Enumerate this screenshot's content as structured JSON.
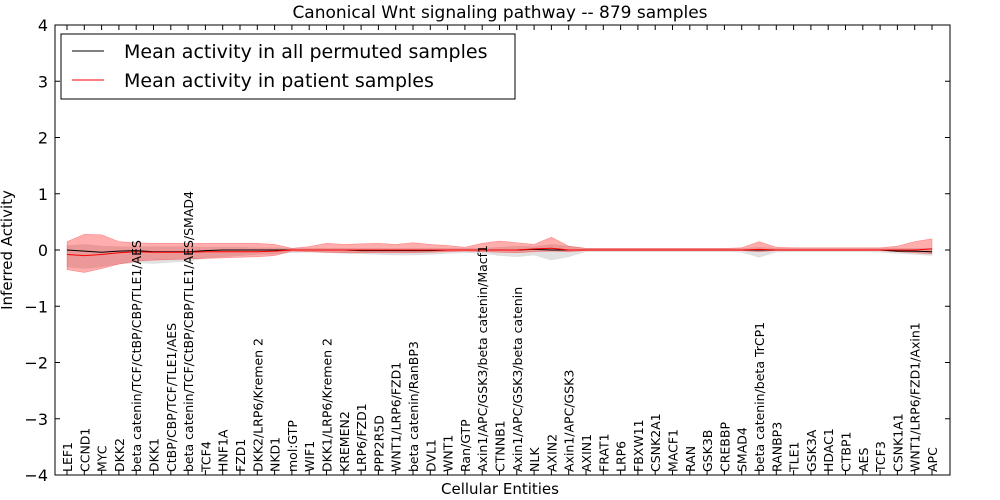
{
  "chart_data": {
    "type": "line",
    "title": "Canonical Wnt signaling pathway -- 879 samples",
    "xlabel": "Cellular Entities",
    "ylabel": "Inferred Activity",
    "ylim": [
      -4,
      4
    ],
    "yticks": [
      -4,
      -3,
      -2,
      -1,
      0,
      1,
      2,
      3,
      4
    ],
    "grid": false,
    "legend_position": "top-left",
    "categories": [
      "LEF1",
      "CCND1",
      "MYC",
      "DKK2",
      "beta catenin/TCF/CtBP/CBP/TLE1/AES",
      "DKK1",
      "CtBP/CBP/TCF/TLE1/AES",
      "beta catenin/TCF/CtBP/CBP/TLE1/AES/SMAD4",
      "TCF4",
      "HNF1A",
      "FZD1",
      "DKK2/LRP6/Kremen 2",
      "NKD1",
      "mol:GTP",
      "WIF1",
      "DKK1/LRP6/Kremen 2",
      "KREMEN2",
      "LRP6/FZD1",
      "PPP2R5D",
      "WNT1/LRP6/FZD1",
      "beta catenin/RanBP3",
      "DVL1",
      "WNT1",
      "Ran/GTP",
      "Axin1/APC/GSK3/beta catenin/Macf1",
      "CTNNB1",
      "Axin1/APC/GSK3/beta catenin",
      "NLK",
      "AXIN2",
      "Axin1/APC/GSK3",
      "AXIN1",
      "FRAT1",
      "LRP6",
      "FBXW11",
      "CSNK2A1",
      "MACF1",
      "RAN",
      "GSK3B",
      "CREBBP",
      "SMAD4",
      "beta catenin/beta TrCP1",
      "RANBP3",
      "TLE1",
      "GSK3A",
      "HDAC1",
      "CTBP1",
      "AES",
      "TCF3",
      "CSNK1A1",
      "WNT1/LRP6/FZD1/Axin1",
      "APC"
    ],
    "series": [
      {
        "name": "Mean activity in all permuted samples",
        "color": "#000000",
        "band_color": "#c8c8c8",
        "values": [
          0.0,
          -0.02,
          -0.04,
          -0.02,
          -0.01,
          -0.03,
          -0.03,
          -0.03,
          -0.01,
          0.0,
          0.0,
          0.0,
          0.0,
          0.0,
          0.0,
          0.0,
          0.0,
          -0.01,
          -0.01,
          -0.01,
          -0.01,
          -0.01,
          0.0,
          0.0,
          0.0,
          0.0,
          0.0,
          0.01,
          0.0,
          0.0,
          0.0,
          0.0,
          0.0,
          0.0,
          0.0,
          0.0,
          0.0,
          0.0,
          0.0,
          0.0,
          0.0,
          0.0,
          0.0,
          0.0,
          0.0,
          0.0,
          0.0,
          0.0,
          -0.02,
          -0.02,
          -0.03
        ],
        "lower": [
          -0.3,
          -0.33,
          -0.3,
          -0.25,
          -0.23,
          -0.24,
          -0.22,
          -0.2,
          -0.15,
          -0.12,
          -0.1,
          -0.08,
          -0.07,
          -0.05,
          -0.04,
          -0.05,
          -0.06,
          -0.07,
          -0.08,
          -0.09,
          -0.09,
          -0.08,
          -0.06,
          -0.05,
          -0.06,
          -0.1,
          -0.12,
          -0.09,
          -0.18,
          -0.12,
          -0.03,
          -0.03,
          -0.03,
          -0.03,
          -0.03,
          -0.03,
          -0.03,
          -0.03,
          -0.03,
          -0.04,
          -0.13,
          -0.04,
          -0.03,
          -0.03,
          -0.03,
          -0.03,
          -0.03,
          -0.04,
          -0.06,
          -0.08,
          -0.1
        ],
        "upper": [
          0.08,
          0.1,
          0.07,
          0.06,
          0.06,
          0.06,
          0.06,
          0.06,
          0.05,
          0.05,
          0.05,
          0.04,
          0.04,
          0.03,
          0.03,
          0.03,
          0.03,
          0.03,
          0.03,
          0.03,
          0.03,
          0.03,
          0.03,
          0.03,
          0.03,
          0.05,
          0.07,
          0.06,
          0.1,
          0.07,
          0.03,
          0.03,
          0.03,
          0.03,
          0.03,
          0.03,
          0.03,
          0.03,
          0.03,
          0.03,
          0.05,
          0.03,
          0.03,
          0.03,
          0.03,
          0.03,
          0.03,
          0.03,
          0.03,
          0.03,
          0.03
        ]
      },
      {
        "name": "Mean activity in patient samples",
        "color": "#ff0000",
        "band_color": "#ff0000",
        "values": [
          -0.08,
          -0.1,
          -0.08,
          -0.05,
          -0.03,
          -0.04,
          -0.04,
          -0.04,
          -0.03,
          -0.03,
          -0.03,
          -0.03,
          -0.02,
          0.0,
          0.0,
          0.0,
          0.0,
          0.0,
          0.0,
          0.0,
          0.0,
          0.0,
          0.0,
          0.0,
          0.0,
          0.0,
          0.0,
          0.02,
          0.03,
          0.0,
          0.0,
          0.0,
          0.0,
          0.0,
          0.0,
          0.0,
          0.0,
          0.0,
          0.0,
          0.0,
          0.01,
          0.0,
          0.0,
          0.0,
          0.0,
          0.0,
          0.0,
          0.0,
          0.0,
          0.0,
          0.02
        ],
        "lower": [
          -0.35,
          -0.4,
          -0.33,
          -0.25,
          -0.2,
          -0.18,
          -0.17,
          -0.16,
          -0.15,
          -0.14,
          -0.13,
          -0.12,
          -0.1,
          -0.02,
          -0.03,
          -0.04,
          -0.05,
          -0.05,
          -0.05,
          -0.05,
          -0.05,
          -0.04,
          -0.03,
          -0.02,
          -0.03,
          -0.04,
          -0.05,
          -0.03,
          -0.02,
          -0.03,
          -0.01,
          -0.01,
          -0.01,
          -0.01,
          -0.01,
          -0.01,
          -0.01,
          -0.01,
          -0.01,
          -0.01,
          -0.03,
          -0.01,
          -0.01,
          -0.01,
          -0.01,
          -0.01,
          -0.01,
          -0.01,
          -0.03,
          -0.05,
          -0.07
        ],
        "upper": [
          0.15,
          0.28,
          0.27,
          0.15,
          0.13,
          0.12,
          0.12,
          0.12,
          0.12,
          0.12,
          0.12,
          0.12,
          0.1,
          0.03,
          0.06,
          0.12,
          0.1,
          0.11,
          0.12,
          0.1,
          0.13,
          0.1,
          0.08,
          0.05,
          0.12,
          0.16,
          0.13,
          0.1,
          0.23,
          0.07,
          0.03,
          0.03,
          0.03,
          0.03,
          0.03,
          0.03,
          0.03,
          0.03,
          0.03,
          0.04,
          0.15,
          0.05,
          0.04,
          0.04,
          0.04,
          0.04,
          0.04,
          0.04,
          0.07,
          0.15,
          0.2
        ]
      }
    ]
  }
}
